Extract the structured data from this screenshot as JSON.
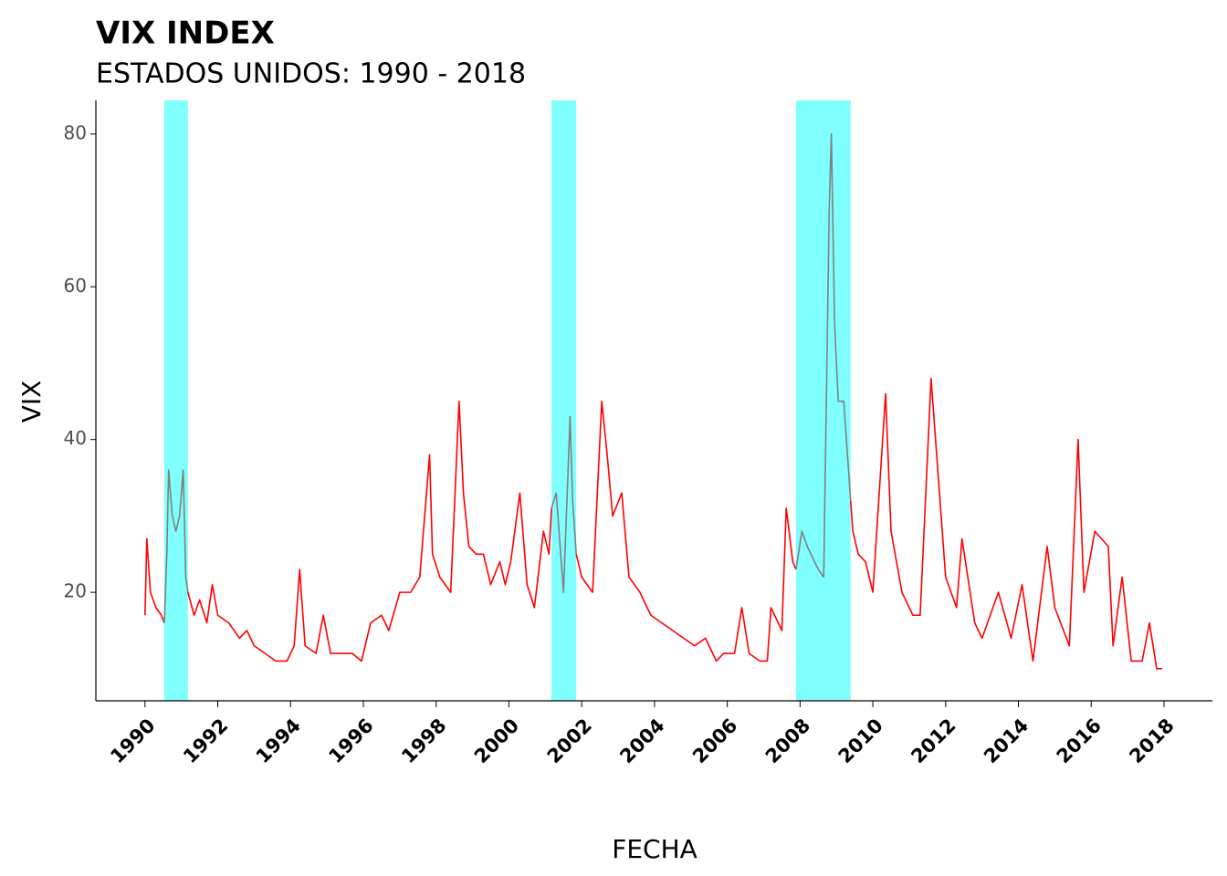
{
  "chart_data": {
    "type": "line",
    "title": "VIX INDEX",
    "subtitle": "ESTADOS UNIDOS: 1990 - 2018",
    "x_label": "FECHA",
    "y_label": "VIX",
    "color": "#ff0000",
    "highlight_color": "#808080",
    "shade_color": "#80ffff",
    "shaded_spans": [
      [
        1990.53,
        1991.18
      ],
      [
        2001.17,
        2001.85
      ],
      [
        2007.89,
        2009.39
      ]
    ],
    "x": [
      1990.0,
      1990.05,
      1990.15,
      1990.3,
      1990.45,
      1990.53,
      1990.6,
      1990.65,
      1990.75,
      1990.85,
      1990.95,
      1991.05,
      1991.12,
      1991.18,
      1991.35,
      1991.5,
      1991.7,
      1991.85,
      1992.0,
      1992.3,
      1992.6,
      1992.8,
      1993.0,
      1993.3,
      1993.6,
      1993.9,
      1994.1,
      1994.25,
      1994.4,
      1994.7,
      1994.9,
      1995.1,
      1995.4,
      1995.7,
      1995.95,
      1996.2,
      1996.5,
      1996.7,
      1997.0,
      1997.3,
      1997.55,
      1997.82,
      1997.9,
      1998.1,
      1998.4,
      1998.63,
      1998.75,
      1998.9,
      1999.1,
      1999.3,
      1999.5,
      1999.75,
      1999.9,
      2000.05,
      2000.3,
      2000.5,
      2000.7,
      2000.95,
      2001.1,
      2001.17,
      2001.3,
      2001.5,
      2001.68,
      2001.75,
      2001.85,
      2002.0,
      2002.3,
      2002.55,
      2002.7,
      2002.85,
      2003.1,
      2003.3,
      2003.6,
      2003.9,
      2004.2,
      2004.5,
      2004.8,
      2005.1,
      2005.4,
      2005.7,
      2005.9,
      2006.2,
      2006.4,
      2006.6,
      2006.9,
      2007.1,
      2007.2,
      2007.5,
      2007.62,
      2007.8,
      2007.89,
      2008.05,
      2008.2,
      2008.5,
      2008.65,
      2008.8,
      2008.86,
      2008.95,
      2009.05,
      2009.2,
      2009.39,
      2009.45,
      2009.6,
      2009.8,
      2010.0,
      2010.35,
      2010.5,
      2010.8,
      2011.1,
      2011.3,
      2011.6,
      2011.8,
      2012.0,
      2012.3,
      2012.45,
      2012.8,
      2013.0,
      2013.45,
      2013.8,
      2014.1,
      2014.4,
      2014.79,
      2015.0,
      2015.4,
      2015.64,
      2015.8,
      2016.1,
      2016.47,
      2016.6,
      2016.85,
      2017.1,
      2017.4,
      2017.6,
      2017.8,
      2017.95
    ],
    "values": [
      17,
      27,
      20,
      18,
      17,
      16,
      25,
      36,
      30,
      28,
      30,
      36,
      22,
      20,
      17,
      19,
      16,
      21,
      17,
      16,
      14,
      15,
      13,
      12,
      11,
      11,
      13,
      23,
      13,
      12,
      17,
      12,
      12,
      12,
      11,
      16,
      17,
      15,
      20,
      20,
      22,
      38,
      25,
      22,
      20,
      45,
      33,
      26,
      25,
      25,
      21,
      24,
      21,
      24,
      33,
      21,
      18,
      28,
      25,
      31,
      33,
      20,
      43,
      32,
      25,
      22,
      20,
      45,
      38,
      30,
      33,
      22,
      20,
      17,
      16,
      15,
      14,
      13,
      14,
      11,
      12,
      12,
      18,
      12,
      11,
      11,
      18,
      15,
      31,
      24,
      23,
      28,
      26,
      23,
      22,
      70,
      80,
      55,
      45,
      45,
      32,
      28,
      25,
      24,
      20,
      46,
      28,
      20,
      17,
      17,
      48,
      35,
      22,
      18,
      27,
      16,
      14,
      20,
      14,
      21,
      11,
      26,
      18,
      13,
      40,
      20,
      28,
      26,
      13,
      22,
      11,
      11,
      16,
      10,
      10
    ],
    "xlim": [
      1988.65,
      2019.33
    ],
    "ylim": [
      5.8,
      84.4
    ],
    "xticks": [
      1990,
      1992,
      1994,
      1996,
      1998,
      2000,
      2002,
      2004,
      2006,
      2008,
      2010,
      2012,
      2014,
      2016,
      2018
    ],
    "yticks": [
      20,
      40,
      60,
      80
    ]
  }
}
